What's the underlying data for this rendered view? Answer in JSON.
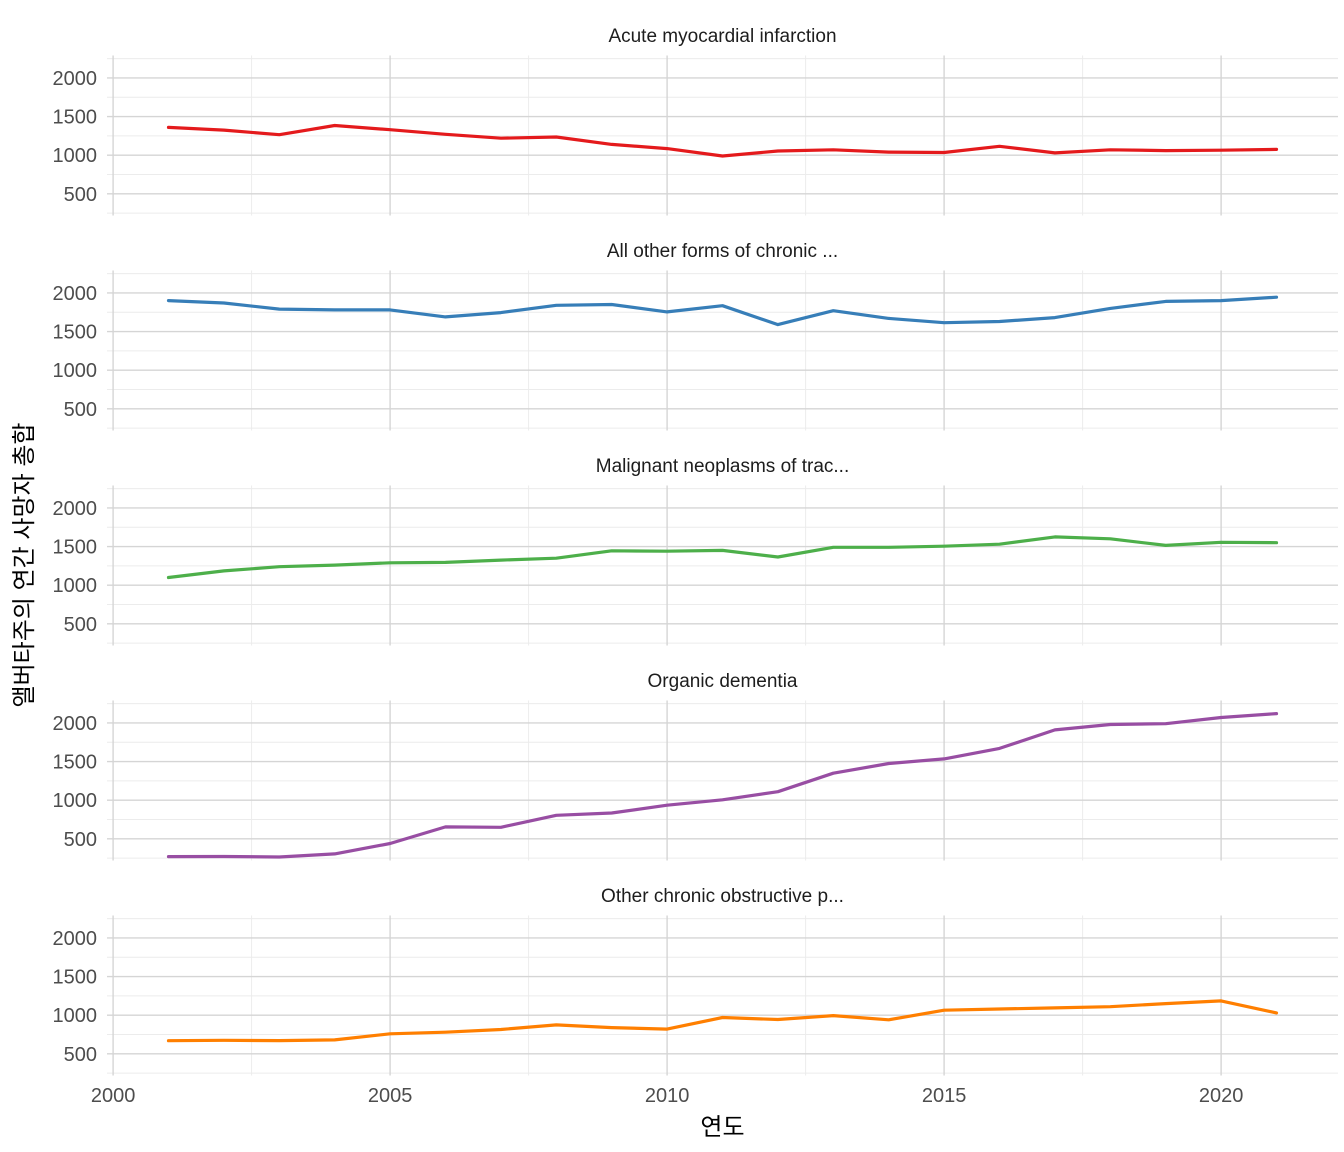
{
  "chart_data": {
    "type": "line",
    "layout": "faceted-rows",
    "xlabel": "연도",
    "ylabel": "앨버타주의 연간 사망자 총합",
    "grid": true,
    "x": [
      2001,
      2002,
      2003,
      2004,
      2005,
      2006,
      2007,
      2008,
      2009,
      2010,
      2011,
      2012,
      2013,
      2014,
      2015,
      2016,
      2017,
      2018,
      2019,
      2020,
      2021
    ],
    "x_ticks": [
      2000,
      2005,
      2010,
      2015,
      2020
    ],
    "x_minor_ticks": [
      2002.5,
      2007.5,
      2012.5,
      2017.5
    ],
    "y_ticks": [
      500,
      1000,
      1500,
      2000
    ],
    "y_minor_ticks": [
      250,
      750,
      1250,
      1750,
      2250
    ],
    "x_range": [
      1999.89,
      2022.11
    ],
    "y_range": [
      220,
      2290
    ],
    "facets": [
      {
        "title": "Acute myocardial infarction",
        "color": "#e41a1c",
        "values": [
          1360,
          1325,
          1265,
          1385,
          1330,
          1270,
          1220,
          1235,
          1140,
          1085,
          990,
          1055,
          1070,
          1040,
          1035,
          1115,
          1030,
          1070,
          1060,
          1065,
          1075
        ]
      },
      {
        "title": "All other forms of chronic ...",
        "color": "#377eb8",
        "values": [
          1900,
          1870,
          1790,
          1780,
          1780,
          1690,
          1745,
          1840,
          1850,
          1755,
          1835,
          1590,
          1770,
          1670,
          1615,
          1630,
          1680,
          1800,
          1890,
          1900,
          1945
        ]
      },
      {
        "title": "Malignant neoplasms of trac...",
        "color": "#4daf4a",
        "values": [
          1100,
          1185,
          1240,
          1260,
          1290,
          1295,
          1325,
          1350,
          1445,
          1440,
          1450,
          1365,
          1490,
          1490,
          1505,
          1530,
          1625,
          1600,
          1515,
          1555,
          1550
        ]
      },
      {
        "title": "Organic dementia",
        "color": "#984ea3",
        "values": [
          270,
          272,
          265,
          305,
          440,
          655,
          650,
          805,
          835,
          935,
          1005,
          1110,
          1350,
          1475,
          1535,
          1670,
          1910,
          1980,
          1990,
          2070,
          2120
        ]
      },
      {
        "title": "Other chronic obstructive p...",
        "color": "#ff7f00",
        "values": [
          670,
          675,
          672,
          680,
          760,
          780,
          815,
          875,
          840,
          820,
          970,
          945,
          995,
          940,
          1065,
          1080,
          1095,
          1110,
          1150,
          1185,
          1030
        ]
      }
    ]
  },
  "axis": {
    "x_tick_labels": [
      "2000",
      "2005",
      "2010",
      "2015",
      "2020"
    ],
    "y_tick_labels": [
      "500",
      "1000",
      "1500",
      "2000"
    ]
  },
  "colors": {
    "background": "#ffffff",
    "grid_minor": "#ececec",
    "grid_major": "#d5d5d5",
    "tick_text": "#4d4d4d",
    "title_text": "#1d1d1d"
  }
}
